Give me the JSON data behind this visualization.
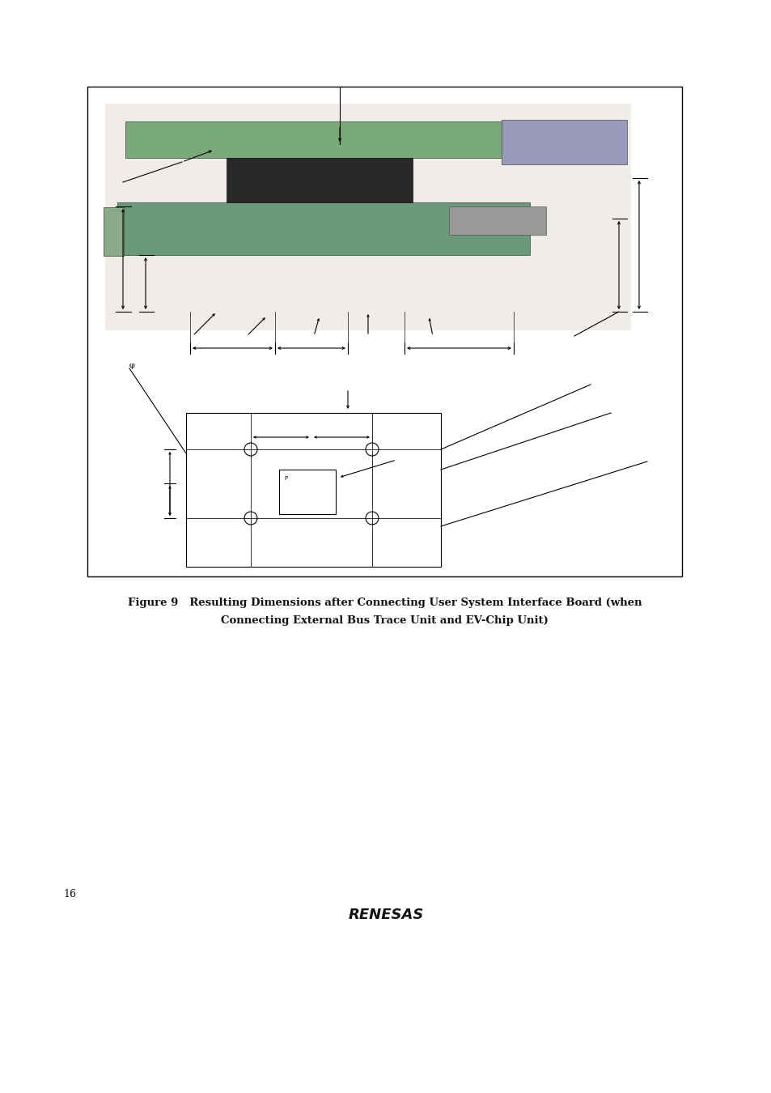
{
  "page_bg": "#ffffff",
  "caption_line1": "Figure 9   Resulting Dimensions after Connecting User System Interface Board (when",
  "caption_line2": "Connecting External Bus Trace Unit and EV-Chip Unit)",
  "caption_fontsize": 9.5,
  "page_number": "16",
  "page_number_fontsize": 9,
  "renesas_logo_text": "RENESAS",
  "line_color": "#000000",
  "line_width": 0.8
}
